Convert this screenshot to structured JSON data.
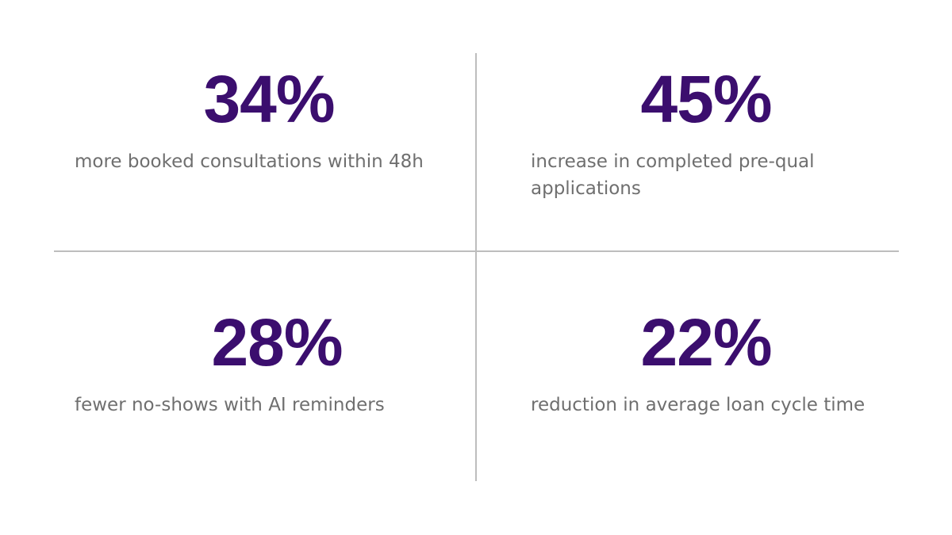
{
  "accent_color": "#3b0e6e",
  "text_color": "#6f6f6f",
  "divider_color": "#bdbdbd",
  "stats": [
    {
      "value": "34%",
      "description": "more booked consultations within 48h"
    },
    {
      "value": "45%",
      "description": "increase in completed pre-qual applications"
    },
    {
      "value": "28%",
      "description": "fewer no-shows with AI reminders"
    },
    {
      "value": "22%",
      "description": "reduction in average loan cycle time"
    }
  ]
}
